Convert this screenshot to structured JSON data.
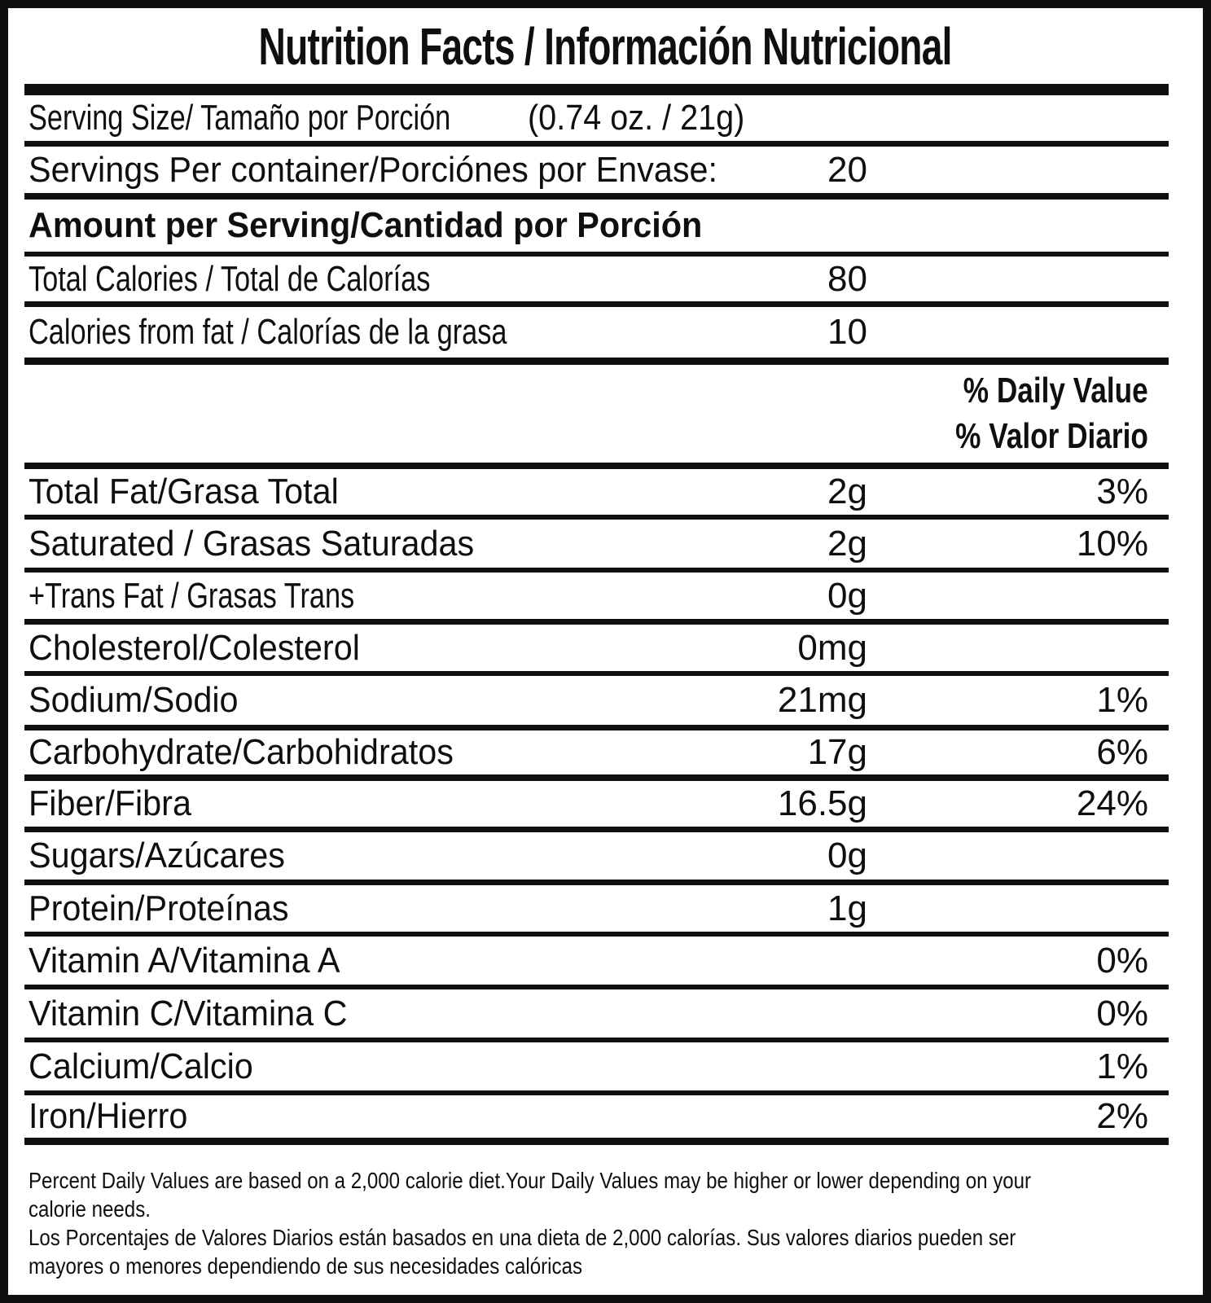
{
  "colors": {
    "ink": "#0f0f0f",
    "background": "#ffffff"
  },
  "table": {
    "title": "Nutrition Facts / Información Nutricional",
    "serving_size": {
      "label": "Serving Size/ Tamaño por Porción",
      "value": "(0.74 oz. / 21g)"
    },
    "servings": {
      "label": "Servings Per container/Porciónes por Envase:",
      "value": "20"
    },
    "section_heading": "Amount per Serving/Cantidad por Porción",
    "calorie_rows": [
      {
        "label": "Total Calories / Total de Calorías",
        "amount": "80"
      },
      {
        "label": "Calories from fat / Calorías de la grasa",
        "amount": "10"
      }
    ],
    "daily_value_header": [
      "% Daily Value",
      "% Valor Diario"
    ],
    "nutrient_rows": [
      {
        "label": "Total Fat/Grasa Total",
        "amount": "2g",
        "percent": "3%"
      },
      {
        "label": "Saturated / Grasas Saturadas",
        "amount": "2g",
        "percent": "10%"
      },
      {
        "label": "+Trans Fat / Grasas Trans",
        "amount": "0g",
        "percent": ""
      },
      {
        "label": "Cholesterol/Colesterol",
        "amount": "0mg",
        "percent": ""
      },
      {
        "label": "Sodium/Sodio",
        "amount": "21mg",
        "percent": "1%"
      },
      {
        "label": "Carbohydrate/Carbohidratos",
        "amount": "17g",
        "percent": "6%"
      },
      {
        "label": "Fiber/Fibra",
        "amount": "16.5g",
        "percent": "24%"
      },
      {
        "label": "Sugars/Azúcares",
        "amount": "0g",
        "percent": ""
      },
      {
        "label": "Protein/Proteínas",
        "amount": "1g",
        "percent": ""
      },
      {
        "label": "Vitamin A/Vitamina A",
        "amount": "",
        "percent": "0%"
      },
      {
        "label": "Vitamin C/Vitamina C",
        "amount": "",
        "percent": "0%"
      },
      {
        "label": "Calcium/Calcio",
        "amount": "",
        "percent": "1%"
      },
      {
        "label": "Iron/Hierro",
        "amount": "",
        "percent": "2%"
      }
    ],
    "footnote_lines": [
      "Percent Daily Values are based on a 2,000 calorie diet.Your Daily Values may be higher or lower depending on your",
      "calorie needs.",
      "Los Porcentajes de Valores Diarios están basados en una dieta de 2,000 calorías. Sus valores diarios pueden ser",
      "mayores o menores dependiendo de sus necesidades calóricas"
    ]
  }
}
